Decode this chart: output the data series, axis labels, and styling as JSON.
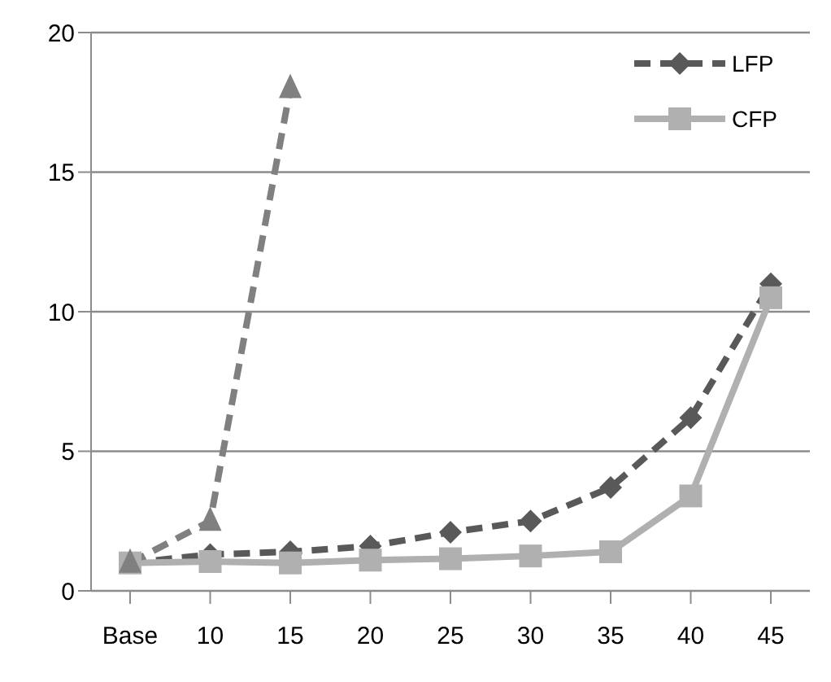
{
  "chart_data": {
    "type": "line",
    "categories": [
      "Base",
      "10",
      "15",
      "20",
      "25",
      "30",
      "35",
      "40",
      "45"
    ],
    "series": [
      {
        "name": "LFP",
        "color": "#595959",
        "marker": "diamond",
        "line_style": "dashed",
        "values": [
          1,
          1.3,
          1.4,
          1.6,
          2.1,
          2.5,
          3.7,
          6.2,
          11
        ]
      },
      {
        "name": "CFP",
        "color": "#b0b0b0",
        "marker": "square",
        "line_style": "solid",
        "values": [
          1,
          1.05,
          1,
          1.1,
          1.15,
          1.25,
          1.4,
          3.4,
          10.5
        ]
      },
      {
        "color": "#808080",
        "marker": "triangle",
        "line_style": "dashed",
        "values": [
          1,
          2.5,
          18,
          null,
          null,
          null,
          null,
          null,
          null
        ]
      }
    ],
    "ylim": [
      0,
      20
    ],
    "yticks": [
      0,
      5,
      10,
      15,
      20
    ],
    "grid": "y",
    "legend": "top right"
  }
}
